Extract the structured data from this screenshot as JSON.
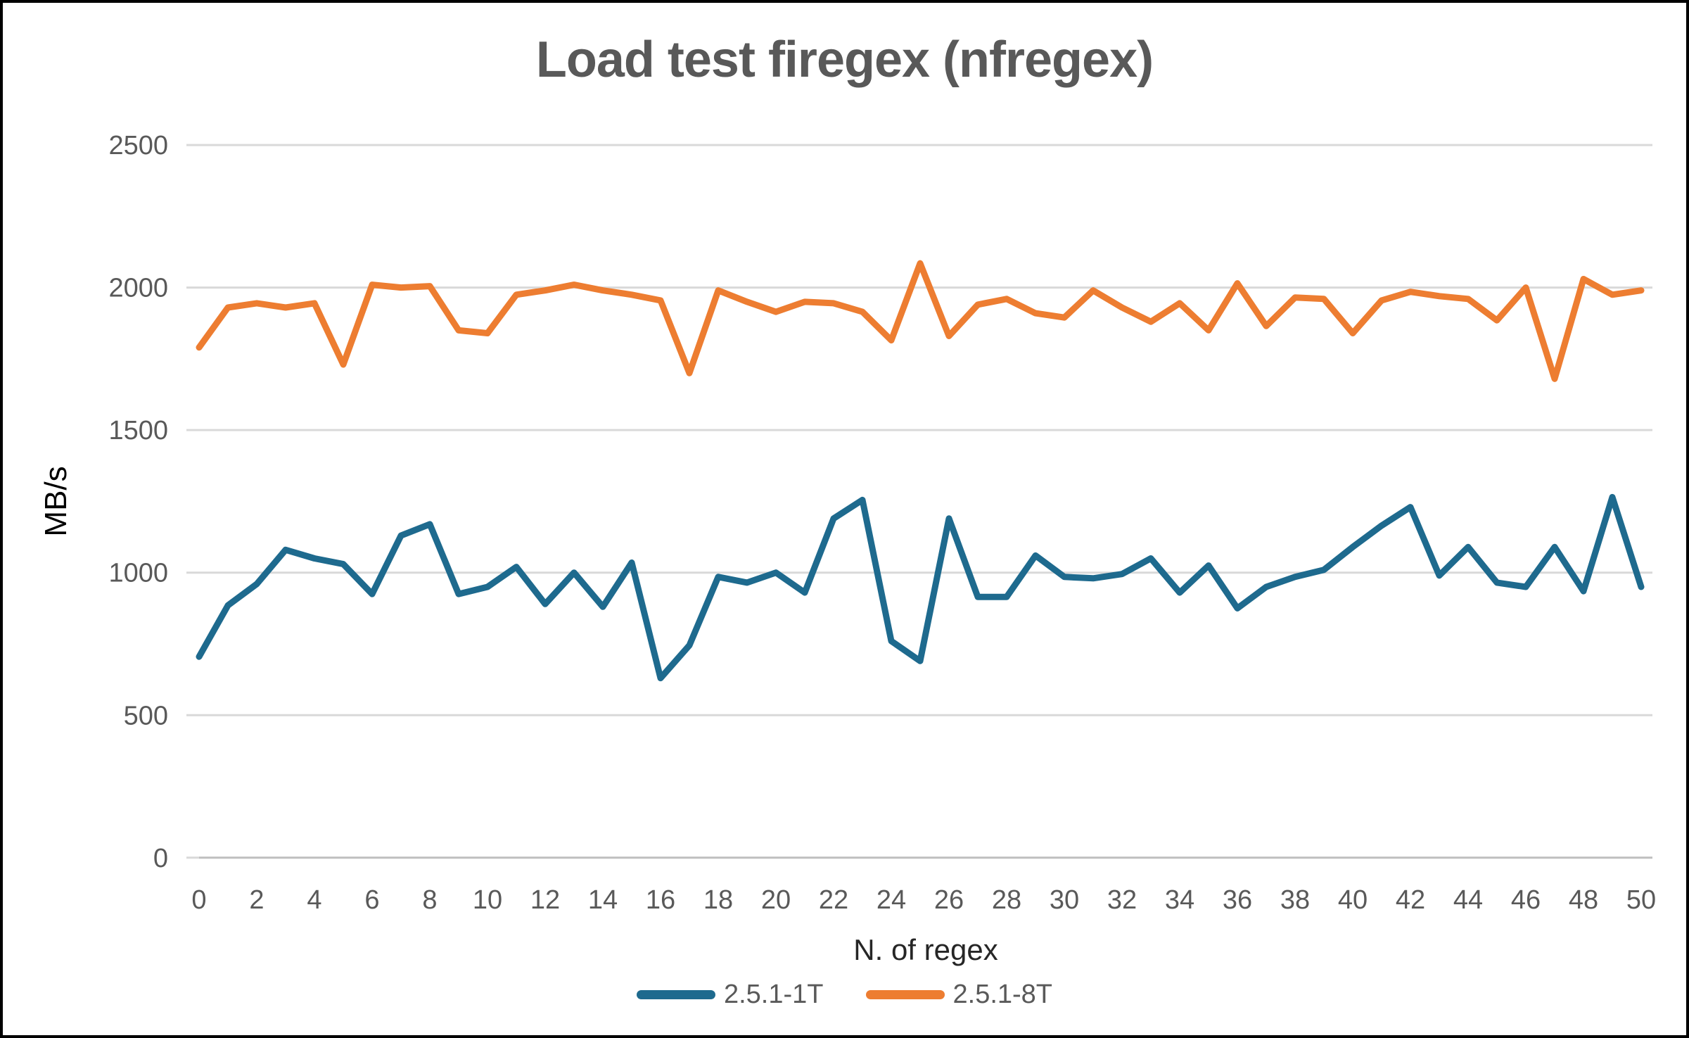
{
  "title": "Load test firegex (nfregex)",
  "chart_data": {
    "type": "line",
    "title": "Load test firegex (nfregex)",
    "xlabel": "N. of regex",
    "ylabel": "MB/s",
    "grid": true,
    "legend_position": "bottom",
    "ylim": [
      0,
      2500
    ],
    "yticks": [
      0,
      500,
      1000,
      1500,
      2000,
      2500
    ],
    "xticks": [
      0,
      2,
      4,
      6,
      8,
      10,
      12,
      14,
      16,
      18,
      20,
      22,
      24,
      26,
      28,
      30,
      32,
      34,
      36,
      38,
      40,
      42,
      44,
      46,
      48,
      50
    ],
    "x": [
      0,
      1,
      2,
      3,
      4,
      5,
      6,
      7,
      8,
      9,
      10,
      11,
      12,
      13,
      14,
      15,
      16,
      17,
      18,
      19,
      20,
      21,
      22,
      23,
      24,
      25,
      26,
      27,
      28,
      29,
      30,
      31,
      32,
      33,
      34,
      35,
      36,
      37,
      38,
      39,
      40,
      41,
      42,
      43,
      44,
      45,
      46,
      47,
      48,
      49,
      50
    ],
    "series": [
      {
        "name": "2.5.1-1T",
        "color": "#1E6A8E",
        "values": [
          705,
          885,
          960,
          1080,
          1050,
          1030,
          925,
          1130,
          1170,
          925,
          950,
          1020,
          890,
          1000,
          880,
          1035,
          630,
          745,
          985,
          965,
          1000,
          930,
          1190,
          1255,
          760,
          690,
          1190,
          915,
          915,
          1060,
          985,
          980,
          995,
          1050,
          930,
          1025,
          875,
          950,
          985,
          1010,
          1090,
          1165,
          1230,
          990,
          1090,
          965,
          950,
          1090,
          935,
          1265,
          950
        ]
      },
      {
        "name": "2.5.1-8T",
        "color": "#ED7D31",
        "values": [
          1790,
          1930,
          1945,
          1930,
          1945,
          1730,
          2010,
          2000,
          2005,
          1850,
          1840,
          1975,
          1990,
          2010,
          1990,
          1975,
          1955,
          1700,
          1990,
          1950,
          1915,
          1950,
          1945,
          1915,
          1815,
          2085,
          1830,
          1940,
          1960,
          1910,
          1895,
          1990,
          1930,
          1880,
          1945,
          1850,
          2015,
          1865,
          1965,
          1960,
          1840,
          1955,
          1985,
          1970,
          1960,
          1885,
          2000,
          1680,
          2030,
          1975,
          1990
        ]
      }
    ],
    "colors": {
      "gridline": "#D9D9D9",
      "axis_line": "#BFBFBF",
      "tick_label": "#595959",
      "title": "#595959"
    }
  },
  "legend": {
    "items": [
      {
        "label": "2.5.1-1T",
        "color": "#1E6A8E"
      },
      {
        "label": "2.5.1-8T",
        "color": "#ED7D31"
      }
    ]
  }
}
